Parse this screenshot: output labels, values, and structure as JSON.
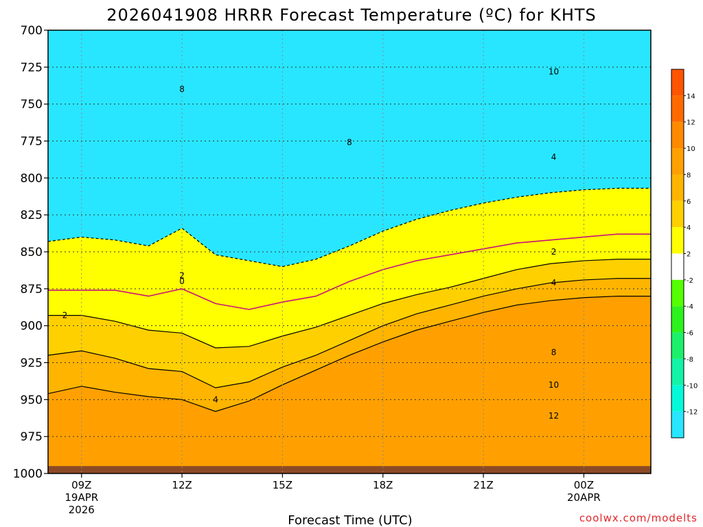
{
  "chart_data": {
    "type": "heatmap",
    "title": "2026041908 HRRR Forecast Temperature (ºC) for KHTS",
    "xlabel": "Forecast Time (UTC)",
    "credit": "coolwx.com/modelts",
    "y_axis": {
      "name": "pressure_hPa",
      "ticks": [
        "700",
        "725",
        "750",
        "775",
        "800",
        "825",
        "850",
        "875",
        "900",
        "925",
        "950",
        "975",
        "1000"
      ],
      "range": [
        700,
        1000
      ],
      "inverted": true
    },
    "x_axis": {
      "name": "forecast_hour_utc",
      "range_hours": [
        8,
        26
      ],
      "ticks": [
        {
          "hour": 9,
          "label1": "09Z",
          "label2": "19APR",
          "label3": "2026"
        },
        {
          "hour": 12,
          "label1": "12Z",
          "label2": "",
          "label3": ""
        },
        {
          "hour": 15,
          "label1": "15Z",
          "label2": "",
          "label3": ""
        },
        {
          "hour": 18,
          "label1": "18Z",
          "label2": "",
          "label3": ""
        },
        {
          "hour": 21,
          "label1": "21Z",
          "label2": "",
          "label3": ""
        },
        {
          "hour": 24,
          "label1": "00Z",
          "label2": "20APR",
          "label3": ""
        }
      ]
    },
    "colorbar": {
      "labels": [
        "14",
        "12",
        "10",
        "8",
        "6",
        "4",
        "2",
        "-2",
        "-4",
        "-6",
        "-8",
        "-10",
        "-12"
      ],
      "bands": [
        {
          "lo": 14,
          "hi": 16,
          "color": "#ff5400"
        },
        {
          "lo": 12,
          "hi": 14,
          "color": "#ff6a00"
        },
        {
          "lo": 10,
          "hi": 12,
          "color": "#ff8a00"
        },
        {
          "lo": 8,
          "hi": 10,
          "color": "#ffa000"
        },
        {
          "lo": 6,
          "hi": 8,
          "color": "#ffb400"
        },
        {
          "lo": 4,
          "hi": 6,
          "color": "#ffd000"
        },
        {
          "lo": 2,
          "hi": 4,
          "color": "#ffff00"
        },
        {
          "lo": -2,
          "hi": 2,
          "color": "#ffffff"
        },
        {
          "lo": -4,
          "hi": -2,
          "color": "#55ff00"
        },
        {
          "lo": -6,
          "hi": -4,
          "color": "#2cf21d"
        },
        {
          "lo": -8,
          "hi": -6,
          "color": "#1cf06a"
        },
        {
          "lo": -10,
          "hi": -8,
          "color": "#12f3a8"
        },
        {
          "lo": -12,
          "hi": -10,
          "color": "#05f9d8"
        },
        {
          "lo": -14,
          "hi": -12,
          "color": "#28e6ff"
        }
      ]
    },
    "fill_bands": [
      {
        "value": -14,
        "color": "#28e6ff"
      },
      {
        "value": -12,
        "color": "#05f9d8"
      },
      {
        "value": -10,
        "color": "#12f3a8"
      },
      {
        "value": -8,
        "color": "#1cf06a"
      },
      {
        "value": -6,
        "color": "#2cf21d"
      },
      {
        "value": -4,
        "color": "#55ff00"
      },
      {
        "value": -2,
        "color": "#ffffff"
      },
      {
        "value": 2,
        "color": "#ffff00"
      },
      {
        "value": 4,
        "color": "#ffd000"
      },
      {
        "value": 6,
        "color": "#ffb400"
      },
      {
        "value": 8,
        "color": "#ffa000"
      },
      {
        "value": 10,
        "color": "#ff8a00"
      },
      {
        "value": 12,
        "color": "#ff6a00"
      },
      {
        "value": 14,
        "color": "#ff5400"
      }
    ],
    "isotherms_hour": [
      8,
      9,
      10,
      11,
      12,
      13,
      14,
      15,
      16,
      17,
      18,
      19,
      20,
      21,
      22,
      23,
      24,
      25,
      26
    ],
    "isotherms_pressure": {
      "-14": [
        null,
        null,
        null,
        null,
        null,
        null,
        null,
        null,
        null,
        null,
        null,
        null,
        null,
        null,
        null,
        null,
        null,
        null,
        null
      ],
      "-12": [
        null,
        null,
        null,
        null,
        null,
        null,
        null,
        null,
        null,
        null,
        null,
        null,
        null,
        null,
        null,
        null,
        null,
        null,
        null
      ],
      "-10": [
        null,
        null,
        null,
        null,
        null,
        null,
        null,
        null,
        null,
        null,
        null,
        null,
        null,
        null,
        null,
        null,
        null,
        null,
        null
      ],
      "-8": [
        null,
        null,
        null,
        null,
        null,
        null,
        null,
        null,
        null,
        null,
        null,
        null,
        null,
        null,
        null,
        null,
        null,
        null,
        null
      ],
      "-6": [
        null,
        null,
        null,
        null,
        null,
        null,
        null,
        null,
        null,
        null,
        null,
        null,
        null,
        null,
        null,
        null,
        null,
        null,
        null
      ],
      "-4": [
        null,
        null,
        null,
        null,
        null,
        null,
        null,
        null,
        null,
        null,
        null,
        null,
        null,
        null,
        null,
        null,
        null,
        null,
        null
      ],
      "-2": [
        843,
        840,
        842,
        846,
        834,
        852,
        856,
        860,
        855,
        846,
        836,
        828,
        822,
        817,
        813,
        810,
        808,
        807,
        807
      ],
      "0": [
        876,
        876,
        876,
        880,
        875,
        885,
        889,
        884,
        880,
        870,
        862,
        856,
        852,
        848,
        844,
        842,
        840,
        838,
        838
      ],
      "2": [
        893,
        893,
        897,
        903,
        905,
        915,
        914,
        907,
        901,
        893,
        885,
        879,
        874,
        868,
        862,
        858,
        856,
        855,
        855
      ],
      "4": [
        920,
        917,
        922,
        929,
        931,
        942,
        938,
        928,
        920,
        910,
        900,
        892,
        886,
        880,
        875,
        871,
        869,
        868,
        868
      ],
      "6": [
        946,
        941,
        945,
        948,
        950,
        958,
        951,
        940,
        930,
        920,
        911,
        903,
        897,
        891,
        886,
        883,
        881,
        880,
        880
      ]
    },
    "surface_pressure": 995,
    "contour_labels": [
      {
        "text": "8",
        "hour": 12,
        "pressure": 740
      },
      {
        "text": "8",
        "hour": 17,
        "pressure": 776
      },
      {
        "text": "10",
        "hour": 23.1,
        "pressure": 728
      },
      {
        "text": "4",
        "hour": 23.1,
        "pressure": 786
      },
      {
        "text": "2",
        "hour": 12,
        "pressure": 866
      },
      {
        "text": "0",
        "hour": 12,
        "pressure": 870
      },
      {
        "text": "2",
        "hour": 8.5,
        "pressure": 893
      },
      {
        "text": "4",
        "hour": 13,
        "pressure": 950
      },
      {
        "text": "2",
        "hour": 23.1,
        "pressure": 850
      },
      {
        "text": "4",
        "hour": 23.1,
        "pressure": 871
      },
      {
        "text": "8",
        "hour": 23.1,
        "pressure": 918
      },
      {
        "text": "10",
        "hour": 23.1,
        "pressure": 940
      },
      {
        "text": "12",
        "hour": 23.1,
        "pressure": 961
      }
    ]
  }
}
